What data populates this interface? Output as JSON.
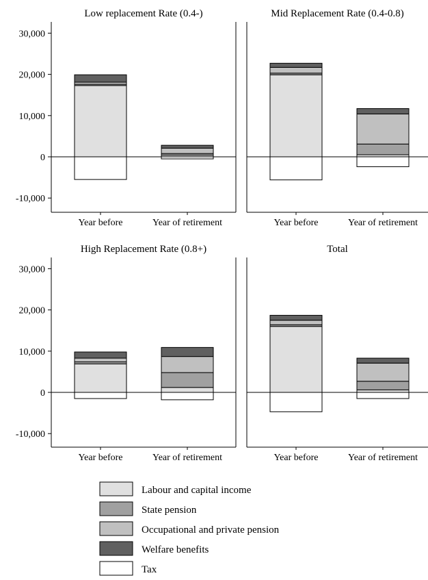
{
  "chart_data": {
    "type": "bar",
    "stacked": true,
    "categories": [
      "Year before",
      "Year of retirement"
    ],
    "y_ticks": [
      30000,
      20000,
      10000,
      0,
      -10000
    ],
    "y_tick_labels": [
      "30,000",
      "20,000",
      "10,000",
      "0",
      "-10,000"
    ],
    "ylim": [
      -15000,
      33500
    ],
    "grid": false,
    "legend_position": "bottom",
    "series_meta": [
      {
        "key": "labour",
        "name": "Labour and capital income",
        "color": "#e0e0e0"
      },
      {
        "key": "state",
        "name": "State pension",
        "color": "#a0a0a0"
      },
      {
        "key": "occ",
        "name": "Occupational and private pension",
        "color": "#c0c0c0"
      },
      {
        "key": "welfare",
        "name": "Welfare benefits",
        "color": "#606060"
      },
      {
        "key": "tax",
        "name": "Tax",
        "color": "#ffffff"
      }
    ],
    "panels": [
      {
        "title": "Low replacement Rate (0.4-)",
        "bars": [
          {
            "labour": 17300,
            "state": 300,
            "occ": 500,
            "welfare": 1800,
            "tax": -5500
          },
          {
            "labour": 400,
            "state": 400,
            "occ": 1300,
            "welfare": 700,
            "tax": -500
          }
        ]
      },
      {
        "title": "Mid Replacement Rate (0.4-0.8)",
        "bars": [
          {
            "labour": 19900,
            "state": 400,
            "occ": 1400,
            "welfare": 1000,
            "tax": -5600
          },
          {
            "labour": 500,
            "state": 2600,
            "occ": 7300,
            "welfare": 1300,
            "tax": -2400
          }
        ]
      },
      {
        "title": "High Replacement Rate (0.8+)",
        "bars": [
          {
            "labour": 6900,
            "state": 500,
            "occ": 900,
            "welfare": 1500,
            "tax": -1500
          },
          {
            "labour": 1200,
            "state": 3600,
            "occ": 3900,
            "welfare": 2200,
            "tax": -1800
          }
        ]
      },
      {
        "title": "Total",
        "bars": [
          {
            "labour": 16000,
            "state": 400,
            "occ": 1100,
            "welfare": 1200,
            "tax": -4700
          },
          {
            "labour": 600,
            "state": 2100,
            "occ": 4400,
            "welfare": 1200,
            "tax": -1500
          }
        ]
      }
    ]
  }
}
